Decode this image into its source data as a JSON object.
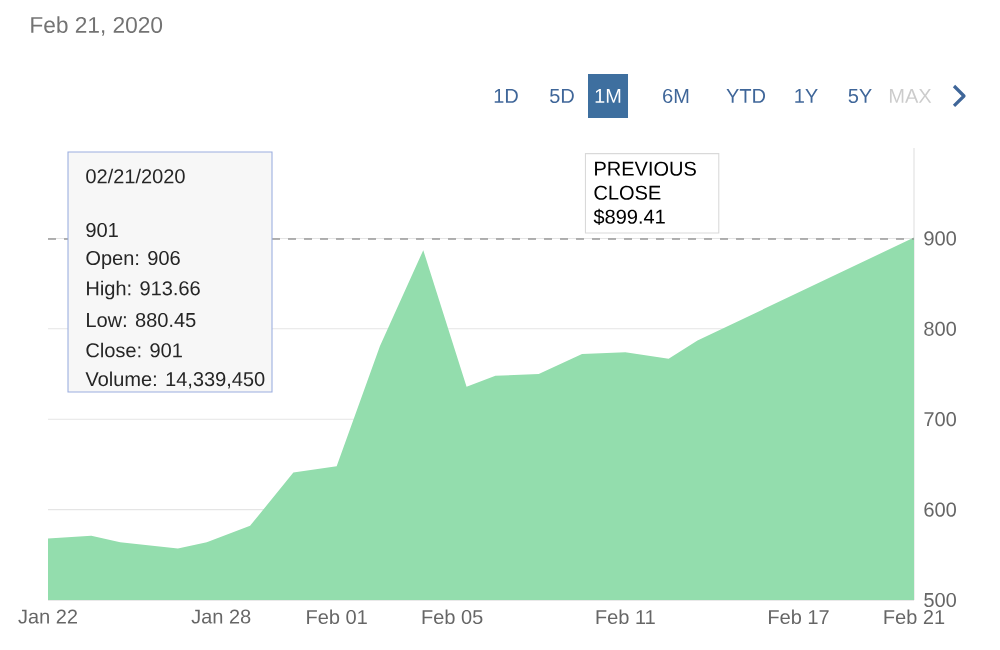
{
  "chart_data": {
    "type": "area",
    "title": "Feb 21, 2020",
    "x": [
      "2020-01-22",
      "2020-01-23T12:00",
      "2020-01-24T12:00",
      "2020-01-26T12:00",
      "2020-01-27T12:00",
      "2020-01-29",
      "2020-01-30T12:00",
      "2020-02-01",
      "2020-02-02T12:00",
      "2020-02-04",
      "2020-02-05T12:00",
      "2020-02-06T12:00",
      "2020-02-08",
      "2020-02-09T12:00",
      "2020-02-11",
      "2020-02-12T12:00",
      "2020-02-13T12:00",
      "2020-02-21"
    ],
    "series": [
      {
        "color": "#93ddad",
        "values": [
          568,
          571,
          564,
          557,
          564,
          582,
          641,
          648,
          781,
          887,
          736,
          748,
          750,
          772,
          774,
          767,
          787,
          901
        ]
      }
    ],
    "xlim": [
      "2020-01-22",
      "2020-02-21"
    ],
    "xticks": [
      {
        "value": "2020-01-22",
        "label": "Jan 22"
      },
      {
        "value": "2020-01-28",
        "label": "Jan 28"
      },
      {
        "value": "2020-02-01",
        "label": "Feb 01"
      },
      {
        "value": "2020-02-05",
        "label": "Feb 05"
      },
      {
        "value": "2020-02-11",
        "label": "Feb 11"
      },
      {
        "value": "2020-02-17",
        "label": "Feb 17"
      },
      {
        "value": "2020-02-21",
        "label": "Feb 21"
      }
    ],
    "ylim": [
      500,
      1000
    ],
    "yticks": [
      {
        "value": 500,
        "label": "500"
      },
      {
        "value": 600,
        "label": "600"
      },
      {
        "value": 700,
        "label": "700"
      },
      {
        "value": 800,
        "label": "800"
      },
      {
        "value": 900,
        "label": "900"
      }
    ],
    "grid": "y",
    "ref_lines": [
      {
        "axis": "y",
        "value": 899.41,
        "label": "PREVIOUS CLOSE $899.41",
        "color": "#999999",
        "line_style": "dashed"
      }
    ],
    "annotations": [
      "1D",
      "5D",
      "1M",
      "6M",
      "YTD",
      "1Y",
      "5Y",
      "MAX",
      "02/21/2020",
      "901",
      "Open: 906",
      "High: 913.66",
      "Low: 880.45",
      "Close: 901",
      "Volume: 14,339,450"
    ]
  }
}
